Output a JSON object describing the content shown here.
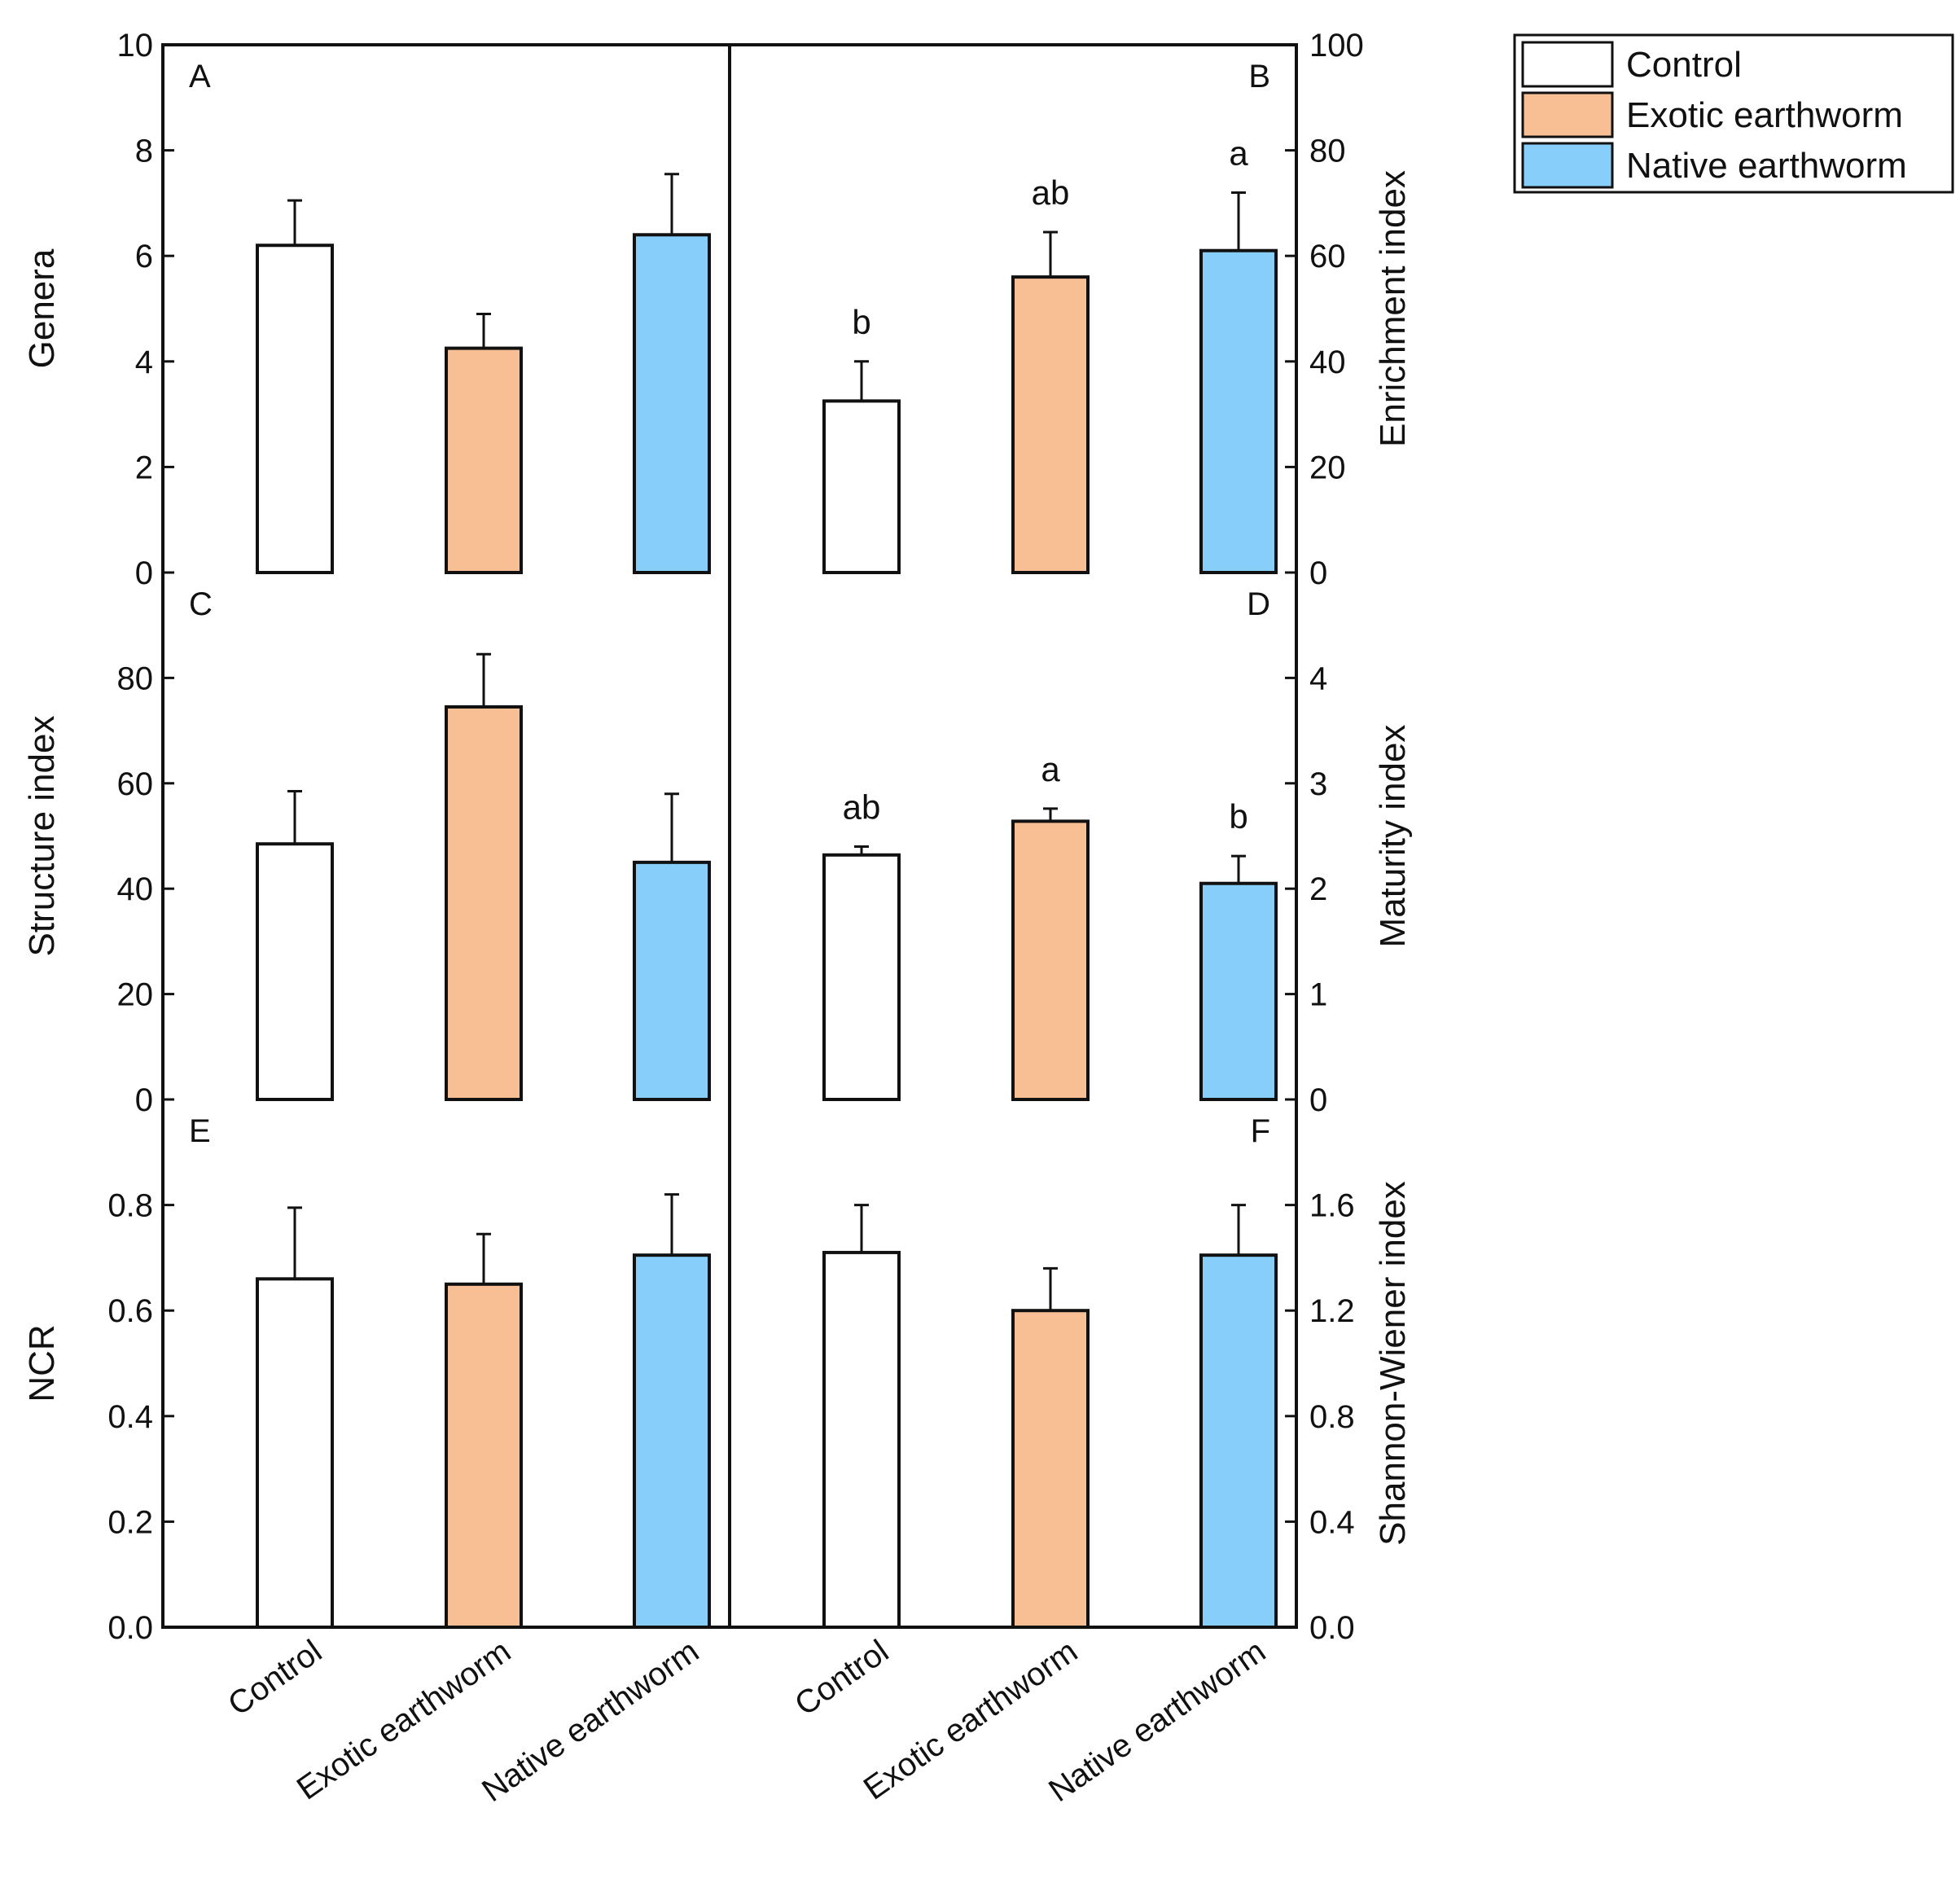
{
  "chart_data": [
    {
      "panel": "A",
      "type": "bar",
      "ylabel": "Genera",
      "ylabel_side": "left",
      "ylim": [
        0,
        10
      ],
      "yticks": [
        "0",
        "2",
        "4",
        "6",
        "8",
        "10"
      ],
      "ytick_values": [
        0,
        2,
        4,
        6,
        8,
        10
      ],
      "categories": [
        "Control",
        "Exotic earthworm",
        "Native earthworm"
      ],
      "values": [
        6.2,
        4.25,
        6.4
      ],
      "errors": [
        0.85,
        0.65,
        1.15
      ],
      "letters": [
        "",
        "",
        ""
      ]
    },
    {
      "panel": "B",
      "type": "bar",
      "ylabel": "Enrichment index",
      "ylabel_side": "right",
      "ylim": [
        0,
        100
      ],
      "yticks": [
        "0",
        "20",
        "40",
        "60",
        "80",
        "100"
      ],
      "ytick_values": [
        0,
        20,
        40,
        60,
        80,
        100
      ],
      "categories": [
        "Control",
        "Exotic earthworm",
        "Native earthworm"
      ],
      "values": [
        32.5,
        56,
        61
      ],
      "errors": [
        7.5,
        8.5,
        11
      ],
      "letters": [
        "b",
        "ab",
        "a"
      ]
    },
    {
      "panel": "C",
      "type": "bar",
      "ylabel": "Structure index",
      "ylabel_side": "left",
      "ylim": [
        0,
        100
      ],
      "yticks": [
        "0",
        "20",
        "40",
        "60",
        "80"
      ],
      "ytick_values": [
        0,
        20,
        40,
        60,
        80
      ],
      "categories": [
        "Control",
        "Exotic earthworm",
        "Native earthworm"
      ],
      "values": [
        48.5,
        74.5,
        45
      ],
      "errors": [
        10,
        10,
        13
      ],
      "letters": [
        "",
        "",
        ""
      ]
    },
    {
      "panel": "D",
      "type": "bar",
      "ylabel": "Maturity index",
      "ylabel_side": "right",
      "ylim": [
        0,
        5
      ],
      "yticks": [
        "0",
        "1",
        "2",
        "3",
        "4"
      ],
      "ytick_values": [
        0,
        1,
        2,
        3,
        4
      ],
      "categories": [
        "Control",
        "Exotic earthworm",
        "Native earthworm"
      ],
      "values": [
        2.32,
        2.64,
        2.05
      ],
      "errors": [
        0.08,
        0.12,
        0.26
      ],
      "letters": [
        "ab",
        "a",
        "b"
      ]
    },
    {
      "panel": "E",
      "type": "bar",
      "ylabel": "NCR",
      "ylabel_side": "left",
      "ylim": [
        0,
        1.0
      ],
      "yticks": [
        "0.0",
        "0.2",
        "0.4",
        "0.6",
        "0.8"
      ],
      "ytick_values": [
        0,
        0.2,
        0.4,
        0.6,
        0.8
      ],
      "categories": [
        "Control",
        "Exotic earthworm",
        "Native earthworm"
      ],
      "values": [
        0.66,
        0.65,
        0.705
      ],
      "errors": [
        0.135,
        0.095,
        0.115
      ],
      "letters": [
        "",
        "",
        ""
      ]
    },
    {
      "panel": "F",
      "type": "bar",
      "ylabel": "Shannon-Wiener index",
      "ylabel_side": "right",
      "ylim": [
        0,
        2.0
      ],
      "yticks": [
        "0.0",
        "0.4",
        "0.8",
        "1.2",
        "1.6"
      ],
      "ytick_values": [
        0,
        0.4,
        0.8,
        1.2,
        1.6
      ],
      "categories": [
        "Control",
        "Exotic earthworm",
        "Native earthworm"
      ],
      "values": [
        1.42,
        1.2,
        1.41
      ],
      "errors": [
        0.18,
        0.16,
        0.19
      ],
      "letters": [
        "",
        "",
        ""
      ]
    }
  ],
  "legend": {
    "position": "top-right",
    "items": [
      {
        "label": "Control",
        "color": "#ffffff"
      },
      {
        "label": "Exotic earthworm",
        "color": "#f8bf94"
      },
      {
        "label": "Native earthworm",
        "color": "#87cefa"
      }
    ]
  },
  "x_category_labels": [
    "Control",
    "Exotic earthworm",
    "Native earthworm"
  ]
}
